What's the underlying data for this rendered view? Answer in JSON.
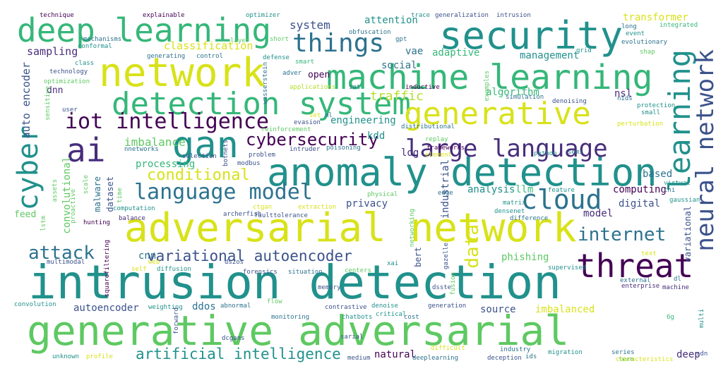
{
  "palette": {
    "background": "#ffffff",
    "yellow": "#d8e219",
    "lime": "#b5de2b",
    "green": "#5ec962",
    "mint": "#35b779",
    "teal": "#21918c",
    "blue": "#2c728e",
    "indigo": "#3b528b",
    "purple": "#472d7b",
    "dark": "#440154"
  },
  "words": [
    {
      "text": "generative adversarial",
      "color": "#5ec962"
    },
    {
      "text": "intrusion detection",
      "color": "#21918c"
    },
    {
      "text": "adversarial network",
      "color": "#d8e219"
    },
    {
      "text": "anomaly detection",
      "color": "#21918c"
    },
    {
      "text": "machine learning",
      "color": "#35b779"
    },
    {
      "text": "network",
      "color": "#d8e219"
    },
    {
      "text": "security",
      "color": "#21918c"
    },
    {
      "text": "deep learning",
      "color": "#35b779"
    },
    {
      "text": "detection system",
      "color": "#35b779"
    },
    {
      "text": "generative",
      "color": "#d8e219"
    },
    {
      "text": "gan",
      "color": "#21918c"
    },
    {
      "text": "ai",
      "color": "#472d7b"
    },
    {
      "text": "large language",
      "color": "#472d7b"
    },
    {
      "text": "threat",
      "color": "#440154"
    },
    {
      "text": "cloud",
      "color": "#2c728e"
    },
    {
      "text": "language model",
      "color": "#2c728e"
    },
    {
      "text": "iot intelligence",
      "color": "#440154"
    },
    {
      "text": "cyber",
      "color": "#21918c"
    },
    {
      "text": "learning",
      "color": "#21918c"
    },
    {
      "text": "neural network",
      "color": "#3b528b"
    },
    {
      "text": "things",
      "color": "#2c728e"
    },
    {
      "text": "internet",
      "color": "#2c728e"
    },
    {
      "text": "cybersecurity",
      "color": "#440154"
    },
    {
      "text": "attack",
      "color": "#2c728e"
    },
    {
      "text": "conditional",
      "color": "#d8e219"
    },
    {
      "text": "variational autoencoder",
      "color": "#3b528b"
    },
    {
      "text": "artificial intelligence",
      "color": "#21918c"
    },
    {
      "text": "data",
      "color": "#d8e219"
    },
    {
      "text": "system",
      "color": "#3b528b"
    },
    {
      "text": "traffic",
      "color": "#b5de2b"
    },
    {
      "text": "imbalance",
      "color": "#5ec962"
    },
    {
      "text": "classification",
      "color": "#d8e219"
    },
    {
      "text": "sampling",
      "color": "#472d7b"
    },
    {
      "text": "auto encoder",
      "color": "#3b528b"
    },
    {
      "text": "attention",
      "color": "#21918c"
    },
    {
      "text": "adaptive",
      "color": "#35b779"
    },
    {
      "text": "social",
      "color": "#2c728e"
    },
    {
      "text": "vae",
      "color": "#2c728e"
    },
    {
      "text": "transformer",
      "color": "#d8e219"
    },
    {
      "text": "management",
      "color": "#21918c"
    },
    {
      "text": "algorithm",
      "color": "#35b779"
    },
    {
      "text": "nsl",
      "color": "#472d7b"
    },
    {
      "text": "kdd",
      "color": "#21918c"
    },
    {
      "text": "engineering",
      "color": "#21918c"
    },
    {
      "text": "processing",
      "color": "#35b779"
    },
    {
      "text": "analysis",
      "color": "#21918c"
    },
    {
      "text": "computing",
      "color": "#440154"
    },
    {
      "text": "digital",
      "color": "#3b528b"
    },
    {
      "text": "llm",
      "color": "#35b779"
    },
    {
      "text": "privacy",
      "color": "#3b528b"
    },
    {
      "text": "industrial",
      "color": "#3b528b"
    },
    {
      "text": "convolutional",
      "color": "#5ec962"
    },
    {
      "text": "dataset",
      "color": "#3b528b"
    },
    {
      "text": "malware",
      "color": "#2c728e"
    },
    {
      "text": "model",
      "color": "#472d7b"
    },
    {
      "text": "based",
      "color": "#2c728e"
    },
    {
      "text": "log",
      "color": "#472d7b"
    },
    {
      "text": "phishing",
      "color": "#5ec962"
    },
    {
      "text": "cnn",
      "color": "#2c728e"
    },
    {
      "text": "autoencoder",
      "color": "#3b528b"
    },
    {
      "text": "source",
      "color": "#3b528b"
    },
    {
      "text": "imbalanced",
      "color": "#d8e219"
    },
    {
      "text": "ddos",
      "color": "#2c728e"
    },
    {
      "text": "deep",
      "color": "#472d7b"
    },
    {
      "text": "natural",
      "color": "#440154"
    },
    {
      "text": "variational",
      "color": "#3b528b"
    },
    {
      "text": "bert",
      "color": "#3b528b"
    },
    {
      "text": "feed",
      "color": "#5ec962"
    },
    {
      "text": "dnn",
      "color": "#472d7b"
    },
    {
      "text": "open",
      "color": "#440154"
    },
    {
      "text": "technique",
      "color": "#440154"
    },
    {
      "text": "explainable",
      "color": "#440154"
    },
    {
      "text": "optimizer",
      "color": "#21918c"
    },
    {
      "text": "trace",
      "color": "#21918c"
    },
    {
      "text": "generalization",
      "color": "#3b528b"
    },
    {
      "text": "intrusion",
      "color": "#3b528b"
    },
    {
      "text": "obfuscation",
      "color": "#2c728e"
    },
    {
      "text": "gpt",
      "color": "#2c728e"
    },
    {
      "text": "long",
      "color": "#2c728e"
    },
    {
      "text": "event",
      "color": "#21918c"
    },
    {
      "text": "integrated",
      "color": "#35b779"
    },
    {
      "text": "evolutionary",
      "color": "#2c728e"
    },
    {
      "text": "shap",
      "color": "#5ec962"
    },
    {
      "text": "mechanisms",
      "color": "#2c728e"
    },
    {
      "text": "conformal",
      "color": "#21918c"
    },
    {
      "text": "layer",
      "color": "#5ec962"
    },
    {
      "text": "short",
      "color": "#5ec962"
    },
    {
      "text": "generating",
      "color": "#2c728e"
    },
    {
      "text": "control",
      "color": "#2c728e"
    },
    {
      "text": "defense",
      "color": "#21918c"
    },
    {
      "text": "grid",
      "color": "#21918c"
    },
    {
      "text": "class",
      "color": "#21918c"
    },
    {
      "text": "technology",
      "color": "#3b528b"
    },
    {
      "text": "wasserstein",
      "color": "#2c728e"
    },
    {
      "text": "smart",
      "color": "#35b779"
    },
    {
      "text": "adver",
      "color": "#2c728e"
    },
    {
      "text": "optimization",
      "color": "#5ec962"
    },
    {
      "text": "sensitive",
      "color": "#5ec962"
    },
    {
      "text": "applications",
      "color": "#b5de2b"
    },
    {
      "text": "sat",
      "color": "#2c728e"
    },
    {
      "text": "inductive",
      "color": "#440154"
    },
    {
      "text": "examples",
      "color": "#5ec962"
    },
    {
      "text": "simulation",
      "color": "#2c728e"
    },
    {
      "text": "denoising",
      "color": "#3b528b"
    },
    {
      "text": "nids",
      "color": "#2c728e"
    },
    {
      "text": "protection",
      "color": "#21918c"
    },
    {
      "text": "small",
      "color": "#21918c"
    },
    {
      "text": "user",
      "color": "#3b528b"
    },
    {
      "text": "set",
      "color": "#d8e219"
    },
    {
      "text": "ml",
      "color": "#2c728e"
    },
    {
      "text": "evasion",
      "color": "#3b528b"
    },
    {
      "text": "reinforcement",
      "color": "#5ec962"
    },
    {
      "text": "distributional",
      "color": "#2c728e"
    },
    {
      "text": "perturbation",
      "color": "#d8e219"
    },
    {
      "text": "replay",
      "color": "#5ec962"
    },
    {
      "text": "selection",
      "color": "#3b528b"
    },
    {
      "text": "nnetworks",
      "color": "#2c728e"
    },
    {
      "text": "botnets",
      "color": "#3b528b"
    },
    {
      "text": "modbus",
      "color": "#3b528b"
    },
    {
      "text": "problem",
      "color": "#3b528b"
    },
    {
      "text": "intruder",
      "color": "#3b528b"
    },
    {
      "text": "poisoning",
      "color": "#2c728e"
    },
    {
      "text": "element",
      "color": "#d8e219"
    },
    {
      "text": "frameworks",
      "color": "#440154"
    },
    {
      "text": "python",
      "color": "#21918c"
    },
    {
      "text": "semi",
      "color": "#2c728e"
    },
    {
      "text": "virtual",
      "color": "#21918c"
    },
    {
      "text": "chi",
      "color": "#2c728e"
    },
    {
      "text": "gaussian",
      "color": "#21918c"
    },
    {
      "text": "feature",
      "color": "#21918c"
    },
    {
      "text": "scale",
      "color": "#5ec962"
    },
    {
      "text": "time",
      "color": "#5ec962"
    },
    {
      "text": "assets",
      "color": "#5ec962"
    },
    {
      "text": "proactive",
      "color": "#5ec962"
    },
    {
      "text": "physical",
      "color": "#5ec962"
    },
    {
      "text": "edge",
      "color": "#2c728e"
    },
    {
      "text": "matrix",
      "color": "#21918c"
    },
    {
      "text": "densenet",
      "color": "#21918c"
    },
    {
      "text": "ctgan",
      "color": "#d8e219"
    },
    {
      "text": "extraction",
      "color": "#d8e219"
    },
    {
      "text": "computation",
      "color": "#21918c"
    },
    {
      "text": "archerfish",
      "color": "#3b528b"
    },
    {
      "text": "faulttolerance",
      "color": "#3b528b"
    },
    {
      "text": "difference",
      "color": "#2c728e"
    },
    {
      "text": "lstm",
      "color": "#5ec962"
    },
    {
      "text": "hunting",
      "color": "#440154"
    },
    {
      "text": "balance",
      "color": "#472d7b"
    },
    {
      "text": "networking",
      "color": "#5ec962"
    },
    {
      "text": "gazelle",
      "color": "#3b528b"
    },
    {
      "text": "fusion",
      "color": "#5ec962"
    },
    {
      "text": "text",
      "color": "#d8e219"
    },
    {
      "text": "multimodal",
      "color": "#3b528b"
    },
    {
      "text": "web",
      "color": "#d8e219"
    },
    {
      "text": "self",
      "color": "#d8e219"
    },
    {
      "text": "diffusion",
      "color": "#21918c"
    },
    {
      "text": "ds2os",
      "color": "#3b528b"
    },
    {
      "text": "forensics",
      "color": "#3b528b"
    },
    {
      "text": "situation",
      "color": "#2c728e"
    },
    {
      "text": "centers",
      "color": "#5ec962"
    },
    {
      "text": "xai",
      "color": "#21918c"
    },
    {
      "text": "supervised",
      "color": "#21918c"
    },
    {
      "text": "squarefiltering",
      "color": "#440154"
    },
    {
      "text": "memory",
      "color": "#3b528b"
    },
    {
      "text": "dsste",
      "color": "#3b528b"
    },
    {
      "text": "external",
      "color": "#2c728e"
    },
    {
      "text": "dl",
      "color": "#2c728e"
    },
    {
      "text": "enterprise",
      "color": "#472d7b"
    },
    {
      "text": "machine",
      "color": "#472d7b"
    },
    {
      "text": "convolution",
      "color": "#21918c"
    },
    {
      "text": "weighting",
      "color": "#21918c"
    },
    {
      "text": "abnormal",
      "color": "#2c728e"
    },
    {
      "text": "flow",
      "color": "#5ec962"
    },
    {
      "text": "contrastive",
      "color": "#3b528b"
    },
    {
      "text": "denoise",
      "color": "#21918c"
    },
    {
      "text": "generation",
      "color": "#3b528b"
    },
    {
      "text": "monitoring",
      "color": "#2c728e"
    },
    {
      "text": "chatbots",
      "color": "#21918c"
    },
    {
      "text": "critical",
      "color": "#21918c"
    },
    {
      "text": "cost",
      "color": "#2c728e"
    },
    {
      "text": "6g",
      "color": "#35b779"
    },
    {
      "text": "multi",
      "color": "#21918c"
    },
    {
      "text": "forward",
      "color": "#3b528b"
    },
    {
      "text": "dcgans",
      "color": "#3b528b"
    },
    {
      "text": "sarial",
      "color": "#3b528b"
    },
    {
      "text": "unknown",
      "color": "#21918c"
    },
    {
      "text": "profile",
      "color": "#d8e219"
    },
    {
      "text": "medium",
      "color": "#3b528b"
    },
    {
      "text": "deeplearning",
      "color": "#2c728e"
    },
    {
      "text": "difficult",
      "color": "#d8e219"
    },
    {
      "text": "deception",
      "color": "#3b528b"
    },
    {
      "text": "ids",
      "color": "#2c728e"
    },
    {
      "text": "industry",
      "color": "#2c728e"
    },
    {
      "text": "migration",
      "color": "#21918c"
    },
    {
      "text": "series",
      "color": "#2c728e"
    },
    {
      "text": "term",
      "color": "#35b779"
    },
    {
      "text": "characteristics",
      "color": "#d8e219"
    },
    {
      "text": "sdn",
      "color": "#3b528b"
    }
  ]
}
